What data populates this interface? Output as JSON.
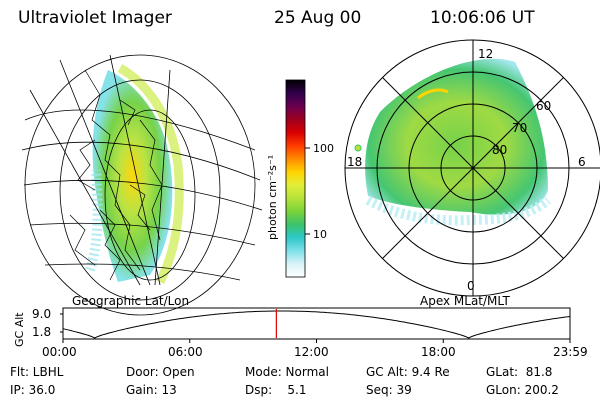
{
  "header": {
    "title": "Ultraviolet Imager",
    "date": "25 Aug 00",
    "time": "10:06:06 UT"
  },
  "colorbar": {
    "unit_label": "photon cm⁻²s⁻¹",
    "ticks": [
      "100",
      "10"
    ],
    "colors": [
      "#ffffff",
      "#d8f2f8",
      "#7fe0e8",
      "#2ec8c8",
      "#3cc36a",
      "#7ad43a",
      "#b6e23a",
      "#e2ee3a",
      "#ffd400",
      "#ff8a00",
      "#ff3a00",
      "#d80000",
      "#9e0020",
      "#6a0050",
      "#30004a",
      "#000000"
    ]
  },
  "left_map": {
    "caption": "Geographic Lat/Lon"
  },
  "right_map": {
    "caption": "Apex MLat/MLT",
    "mlt_labels": {
      "top": "12",
      "left": "18",
      "right": "6",
      "bottom": "0"
    },
    "lat_labels": [
      "60",
      "70",
      "80"
    ]
  },
  "timeline": {
    "ylabel": "GC Alt",
    "y_ticks": [
      "9.0",
      "1.8"
    ],
    "x_ticks": [
      "00:00",
      "06:00",
      "12:00",
      "18:00",
      "23:59"
    ],
    "marker_hours": 10.1
  },
  "footer": {
    "filter": "Flt: LBHL",
    "ip": "IP: 36.0",
    "door": "Door: Open",
    "gain": "Gain: 13",
    "mode": "Mode: Normal",
    "dsp": "Dsp:    5.1",
    "gc_alt": "GC Alt: 9.4 Re",
    "seq": "Seq: 39",
    "glat": "GLat:  81.8",
    "glon": "GLon: 200.2"
  }
}
